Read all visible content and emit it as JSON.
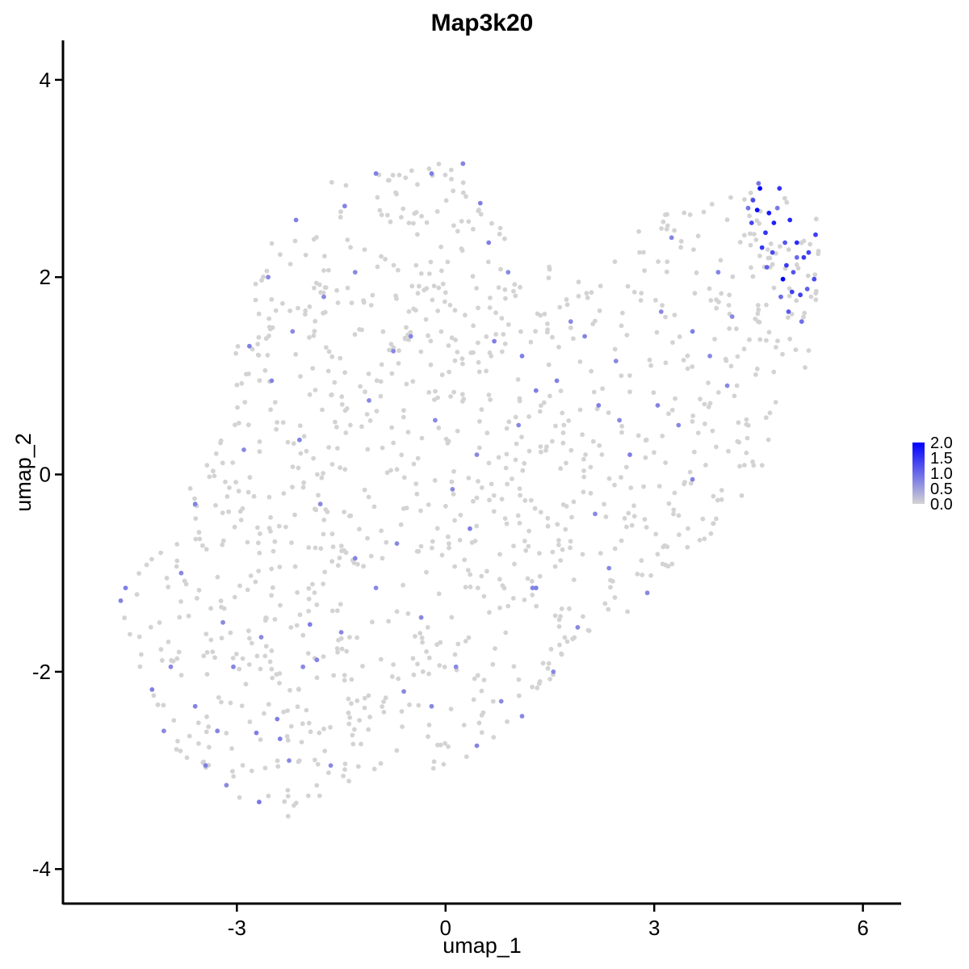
{
  "chart_data": {
    "type": "scatter",
    "title": "Map3k20",
    "xlabel": "umap_1",
    "ylabel": "umap_2",
    "xlim": [
      -5.5,
      6.55
    ],
    "ylim": [
      -4.35,
      4.4
    ],
    "x_ticks": [
      -3,
      0,
      3,
      6
    ],
    "x_tick_labels": [
      "-3",
      "0",
      "3",
      "6"
    ],
    "y_ticks": [
      -4,
      -2,
      0,
      2,
      4
    ],
    "y_tick_labels": [
      "-4",
      "-2",
      "0",
      "2",
      "4"
    ],
    "grid": false,
    "color_scale": {
      "low": "#d3d3d3",
      "high": "#0000ff",
      "min": 0,
      "max": 2.0,
      "breaks": [
        "0.0",
        "0.5",
        "1.0",
        "1.5",
        "2.0"
      ],
      "position": "right"
    },
    "series": [
      {
        "points": [
          [
            4.52,
            2.9,
            2.0
          ],
          [
            4.85,
            1.98,
            2.0
          ],
          [
            4.48,
            2.68,
            1.9
          ],
          [
            4.65,
            2.65,
            1.75
          ],
          [
            4.72,
            2.55,
            1.7
          ],
          [
            4.95,
            2.58,
            1.6
          ],
          [
            5.05,
            2.35,
            1.6
          ],
          [
            4.6,
            2.45,
            1.5
          ],
          [
            4.8,
            2.9,
            1.5
          ],
          [
            4.55,
            2.3,
            1.5
          ],
          [
            5.15,
            2.2,
            1.45
          ],
          [
            5.32,
            2.43,
            1.4
          ],
          [
            4.9,
            2.12,
            1.45
          ],
          [
            4.98,
            1.85,
            1.4
          ],
          [
            5.1,
            1.82,
            1.4
          ],
          [
            5.22,
            2.25,
            1.35
          ],
          [
            4.4,
            2.55,
            1.35
          ],
          [
            4.7,
            2.25,
            1.3
          ],
          [
            4.42,
            2.78,
            1.3
          ],
          [
            5.3,
            1.98,
            1.3
          ],
          [
            4.88,
            2.35,
            1.2
          ],
          [
            5.0,
            2.05,
            1.2
          ],
          [
            4.93,
            1.65,
            1.15
          ],
          [
            5.2,
            1.88,
            1.1
          ],
          [
            4.62,
            2.1,
            1.1
          ],
          [
            5.05,
            2.2,
            1.0
          ],
          [
            4.82,
            1.8,
            1.0
          ],
          [
            5.12,
            1.55,
            0.95
          ],
          [
            4.35,
            2.7,
            0.9
          ],
          [
            4.77,
            2.7,
            0.85
          ],
          [
            4.5,
            2.95,
            0.9
          ],
          [
            4.12,
            1.6,
            0.7
          ],
          [
            3.92,
            2.05,
            0.75
          ],
          [
            3.55,
            1.45,
            0.8
          ],
          [
            3.25,
            2.4,
            0.75
          ],
          [
            -4.6,
            -1.15,
            0.8
          ],
          [
            -4.67,
            -1.28,
            0.75
          ],
          [
            -4.22,
            -2.18,
            0.8
          ],
          [
            -4.05,
            -2.6,
            0.7
          ],
          [
            -3.28,
            -2.6,
            0.75
          ],
          [
            -2.72,
            -2.62,
            0.8
          ],
          [
            -2.68,
            -3.32,
            0.85
          ],
          [
            -2.42,
            -2.48,
            0.8
          ],
          [
            -2.38,
            -2.68,
            0.8
          ],
          [
            -1.95,
            -1.52,
            0.8
          ],
          [
            -1.85,
            -1.88,
            0.75
          ],
          [
            -2.82,
            1.3,
            0.8
          ],
          [
            -2.5,
            0.95,
            0.75
          ],
          [
            -2.15,
            2.58,
            0.8
          ],
          [
            -1.45,
            2.72,
            0.75
          ],
          [
            -1.0,
            3.05,
            0.8
          ],
          [
            -0.2,
            3.05,
            0.8
          ],
          [
            0.25,
            3.15,
            0.75
          ],
          [
            0.5,
            2.75,
            0.8
          ],
          [
            0.62,
            2.35,
            0.8
          ],
          [
            -0.5,
            1.4,
            0.75
          ],
          [
            -0.75,
            1.25,
            0.7
          ],
          [
            0.7,
            1.35,
            0.8
          ],
          [
            1.1,
            1.2,
            0.8
          ],
          [
            1.3,
            0.85,
            0.8
          ],
          [
            1.6,
            0.95,
            0.8
          ],
          [
            2.0,
            1.4,
            0.75
          ],
          [
            2.2,
            0.7,
            0.8
          ],
          [
            2.5,
            0.55,
            0.7
          ],
          [
            3.05,
            0.7,
            0.75
          ],
          [
            2.65,
            0.2,
            0.8
          ],
          [
            3.55,
            -0.05,
            0.75
          ],
          [
            1.3,
            -1.15,
            0.8
          ],
          [
            1.25,
            -1.15,
            0.75
          ],
          [
            1.9,
            -1.55,
            0.7
          ],
          [
            2.15,
            -0.4,
            0.7
          ],
          [
            0.35,
            -0.55,
            0.8
          ],
          [
            0.1,
            -0.15,
            0.7
          ],
          [
            -0.7,
            -0.7,
            0.7
          ],
          [
            -1.3,
            -0.85,
            0.75
          ],
          [
            -0.35,
            -1.45,
            0.7
          ],
          [
            -0.2,
            -2.35,
            0.7
          ],
          [
            0.45,
            -2.75,
            0.75
          ],
          [
            -1.0,
            -1.15,
            0.7
          ],
          [
            -1.8,
            -0.3,
            0.7
          ],
          [
            -2.1,
            0.35,
            0.75
          ],
          [
            -2.9,
            0.25,
            0.7
          ],
          [
            -3.6,
            -0.3,
            0.75
          ],
          [
            -3.8,
            -1.0,
            0.7
          ],
          [
            -3.2,
            -1.5,
            0.7
          ],
          [
            -3.05,
            -1.95,
            0.75
          ],
          [
            -3.6,
            -2.35,
            0.75
          ],
          [
            -3.45,
            -2.95,
            0.8
          ],
          [
            -2.25,
            -2.9,
            0.7
          ],
          [
            -1.5,
            -1.6,
            0.7
          ],
          [
            1.55,
            -2.0,
            0.7
          ],
          [
            0.8,
            -2.3,
            0.7
          ],
          [
            -0.6,
            -2.2,
            0.7
          ],
          [
            2.9,
            -1.2,
            0.7
          ],
          [
            3.35,
            0.5,
            0.7
          ],
          [
            4.05,
            0.9,
            0.7
          ],
          [
            1.8,
            1.55,
            0.7
          ],
          [
            0.9,
            2.05,
            0.7
          ],
          [
            -1.3,
            2.05,
            0.7
          ],
          [
            -1.75,
            1.8,
            0.7
          ],
          [
            -2.55,
            2.0,
            0.7
          ],
          [
            -2.2,
            1.45,
            0.7
          ],
          [
            -1.1,
            0.75,
            0.7
          ],
          [
            -0.15,
            0.55,
            0.7
          ],
          [
            0.45,
            0.2,
            0.7
          ],
          [
            1.05,
            0.5,
            0.7
          ],
          [
            2.45,
            1.15,
            0.7
          ],
          [
            3.1,
            1.65,
            0.7
          ],
          [
            3.8,
            1.2,
            0.7
          ],
          [
            0.15,
            -1.95,
            0.7
          ],
          [
            -2.65,
            -1.65,
            0.7
          ],
          [
            -2.05,
            -1.95,
            0.7
          ],
          [
            -1.65,
            -2.95,
            0.7
          ],
          [
            -3.95,
            -1.95,
            0.7
          ],
          [
            -3.15,
            -3.15,
            0.7
          ],
          [
            1.1,
            -2.45,
            0.7
          ],
          [
            2.35,
            -0.95,
            0.7
          ]
        ]
      }
    ]
  }
}
